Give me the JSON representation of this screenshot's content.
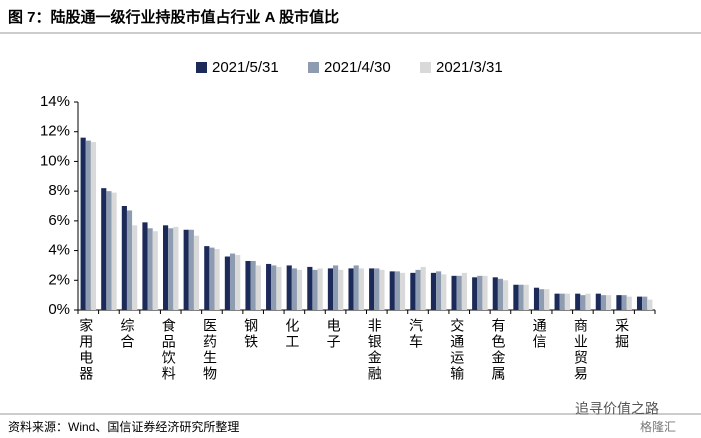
{
  "chart_data": {
    "type": "bar",
    "title": "图 7：陆股通一级行业持股市值占行业 A 股市值比",
    "source": "资料来源：Wind、国信证券经济研究所整理",
    "annotations": [
      "追寻价值之路",
      "格隆汇"
    ],
    "categories": [
      "家用电器",
      null,
      "综合",
      null,
      "食品饮料",
      null,
      "医药生物",
      null,
      "钢铁",
      null,
      "化工",
      null,
      "电子",
      null,
      "非银金融",
      null,
      "汽车",
      null,
      "交通运输",
      null,
      "有色金属",
      null,
      "通信",
      null,
      "商业贸易",
      null,
      "采掘",
      null
    ],
    "series": [
      {
        "name": "2021/5/31",
        "color": "#1c2a5a",
        "values": [
          11.6,
          8.2,
          7.0,
          5.9,
          5.7,
          5.4,
          4.3,
          3.6,
          3.3,
          3.1,
          3.0,
          2.9,
          2.8,
          2.8,
          2.8,
          2.6,
          2.5,
          2.5,
          2.3,
          2.2,
          2.2,
          1.7,
          1.5,
          1.1,
          1.1,
          1.1,
          1.0,
          0.9
        ]
      },
      {
        "name": "2021/4/30",
        "color": "#8d9cb0",
        "values": [
          11.4,
          8.0,
          6.7,
          5.5,
          5.5,
          5.4,
          4.2,
          3.8,
          3.3,
          3.0,
          2.8,
          2.7,
          3.0,
          3.0,
          2.8,
          2.6,
          2.7,
          2.6,
          2.3,
          2.3,
          2.1,
          1.7,
          1.4,
          1.1,
          1.0,
          1.0,
          1.0,
          0.9
        ]
      },
      {
        "name": "2021/3/31",
        "color": "#d9d9d9",
        "values": [
          11.3,
          7.9,
          5.7,
          5.3,
          5.6,
          5.0,
          4.1,
          3.7,
          3.0,
          2.9,
          2.7,
          2.8,
          2.7,
          2.8,
          2.7,
          2.5,
          2.9,
          2.4,
          2.5,
          2.3,
          2.0,
          1.7,
          1.4,
          1.1,
          1.1,
          1.0,
          0.9,
          0.7
        ]
      }
    ],
    "ylim": [
      0,
      14
    ],
    "yticks": [
      {
        "value": 0,
        "label": "0%"
      },
      {
        "value": 2,
        "label": "2%"
      },
      {
        "value": 4,
        "label": "4%"
      },
      {
        "value": 6,
        "label": "6%"
      },
      {
        "value": 8,
        "label": "8%"
      },
      {
        "value": 10,
        "label": "10%"
      },
      {
        "value": 12,
        "label": "12%"
      },
      {
        "value": 14,
        "label": "14%"
      }
    ],
    "grid": false,
    "legend": "top"
  }
}
